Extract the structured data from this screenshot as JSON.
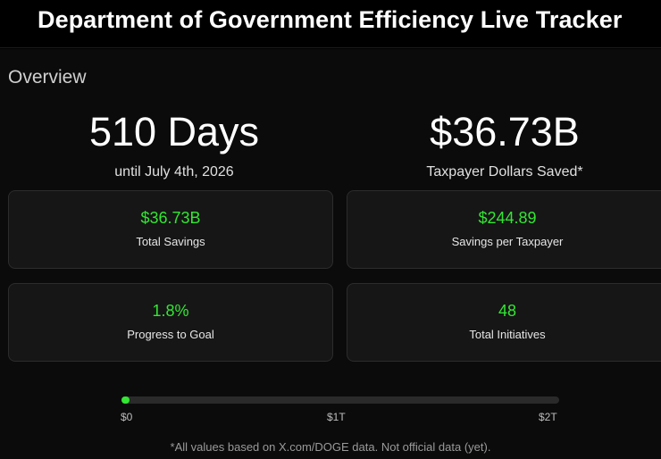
{
  "header": {
    "title": "Department of Government Efficiency Live Tracker"
  },
  "overview": {
    "title": "Overview",
    "countdown": {
      "value": "510 Days",
      "caption": "until July 4th, 2026"
    },
    "saved": {
      "value": "$36.73B",
      "caption": "Taxpayer Dollars Saved*"
    }
  },
  "cards": [
    {
      "value": "$36.73B",
      "label": "Total Savings"
    },
    {
      "value": "$244.89",
      "label": "Savings per Taxpayer"
    },
    {
      "value": "1.8%",
      "label": "Progress to Goal"
    },
    {
      "value": "48",
      "label": "Total Initiatives"
    }
  ],
  "progress": {
    "fraction": 0.018,
    "scale": [
      "$0",
      "$1T",
      "$2T"
    ],
    "color": "#33e633"
  },
  "footnote": "*All values based on X.com/DOGE data. Not official data (yet)."
}
